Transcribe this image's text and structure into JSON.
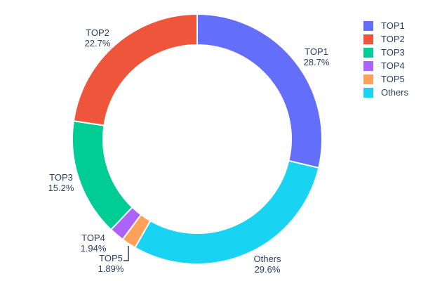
{
  "chart_data": {
    "type": "pie",
    "subtype": "donut",
    "hole": 0.75,
    "rotation_deg": 0,
    "text_position": "outside",
    "grid": false,
    "legend_position": "right",
    "labels": [
      "TOP1",
      "TOP2",
      "TOP3",
      "TOP4",
      "TOP5",
      "Others"
    ],
    "values": [
      28.7,
      22.7,
      15.2,
      1.94,
      1.89,
      29.6
    ],
    "percent_labels": [
      "28.7%",
      "22.7%",
      "15.2%",
      "1.94%",
      "1.89%",
      "29.6%"
    ],
    "colors": [
      "#636efa",
      "#ef553b",
      "#00cc96",
      "#ab63fa",
      "#ffa15a",
      "#19d3f3"
    ],
    "title": "",
    "background_color": "#ffffff",
    "text_color": "#2a3f5f",
    "slice_border_color": "#ffffff"
  },
  "legend": {
    "items": [
      "TOP1",
      "TOP2",
      "TOP3",
      "TOP4",
      "TOP5",
      "Others"
    ]
  }
}
